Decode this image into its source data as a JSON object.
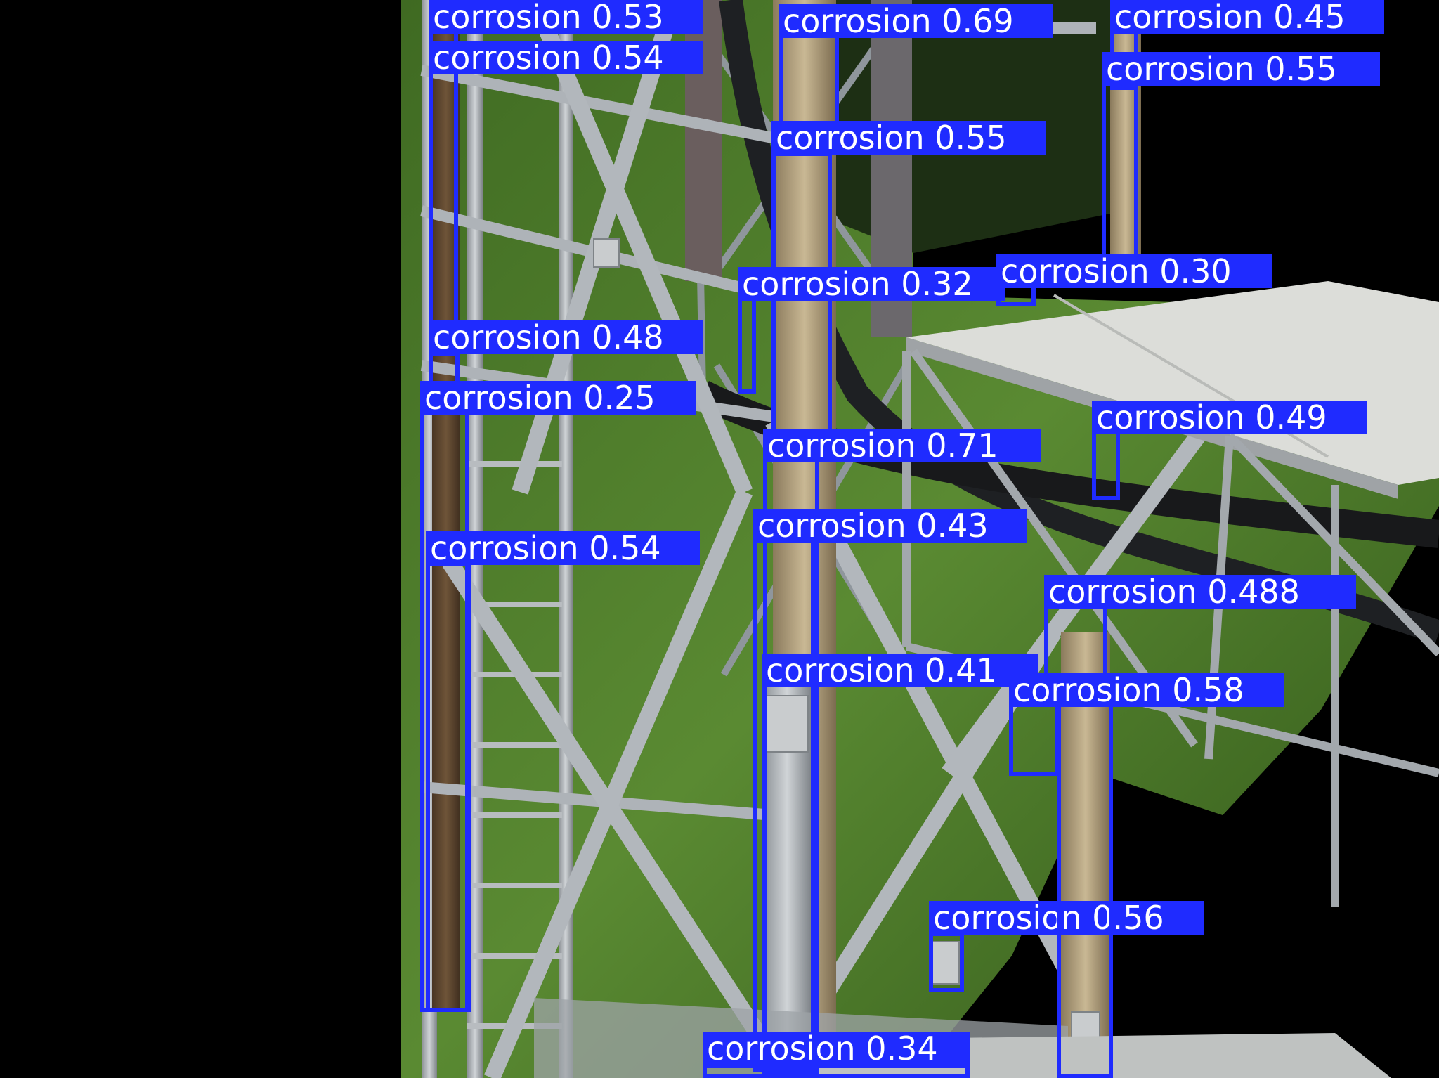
{
  "image": {
    "colors": {
      "background": "#000000",
      "grass": "#4f7a2a",
      "steel": "#a8adb2",
      "platform": "#d9dad6",
      "detection": "#1f2bff",
      "label_text": "#ffffff"
    }
  },
  "detections": [
    {
      "label": "corrosion 0.53"
    },
    {
      "label": "corrosion 0.54"
    },
    {
      "label": "corrosion 0.69"
    },
    {
      "label": "corrosion 0.45"
    },
    {
      "label": "corrosion 0.55"
    },
    {
      "label": "corrosion 0.55"
    },
    {
      "label": "corrosion 0.32"
    },
    {
      "label": "corrosion 0.30"
    },
    {
      "label": "corrosion 0.48"
    },
    {
      "label": "corrosion 0.25"
    },
    {
      "label": "corrosion 0.71"
    },
    {
      "label": "corrosion 0.49"
    },
    {
      "label": "corrosion 0.54"
    },
    {
      "label": "corrosion 0.43"
    },
    {
      "label": "corrosion 0.488"
    },
    {
      "label": "corrosion 0.41"
    },
    {
      "label": "corrosion 0.58"
    },
    {
      "label": "corrosion 0.56"
    },
    {
      "label": "corrosion 0.34"
    }
  ]
}
